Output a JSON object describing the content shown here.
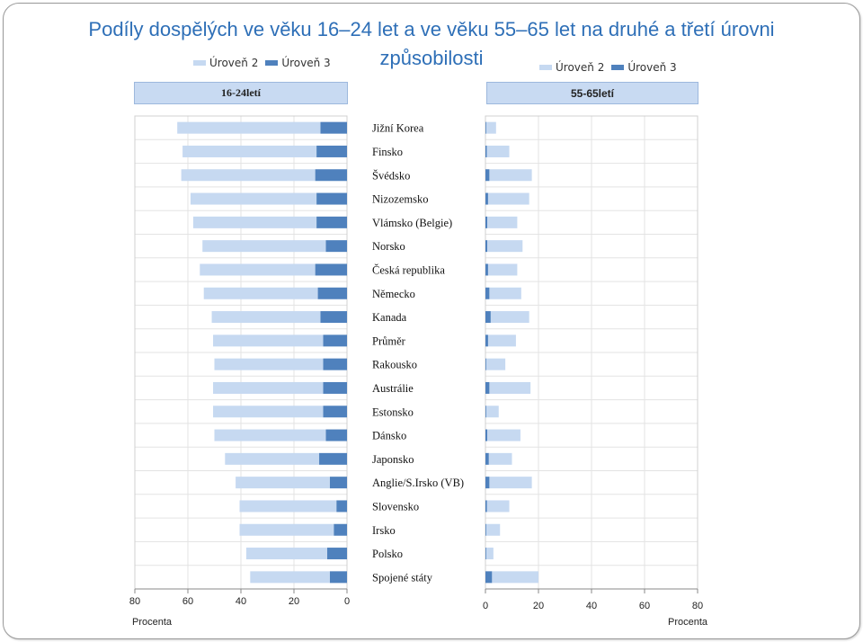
{
  "chart_data": {
    "type": "bar",
    "title_line1": "Podíly dospělých ve věku 16–24 let a ve věku 55–65 let na druhé a třetí úrovni",
    "title_line2": "způsobilosti",
    "legend": [
      "Úroveň 2",
      "Úroveň 3"
    ],
    "colors": {
      "level2": "#c6d9f1",
      "level3": "#4f81bd"
    },
    "categories": [
      "Jižní Korea",
      "Finsko",
      "Švédsko",
      "Nizozemsko",
      "Vlámsko (Belgie)",
      "Norsko",
      "Česká republika",
      "Německo",
      "Kanada",
      "Průměr",
      "Rakousko",
      "Austrálie",
      "Estonsko",
      "Dánsko",
      "Japonsko",
      "Anglie/S.Irsko (VB)",
      "Slovensko",
      "Irsko",
      "Polsko",
      "Spojené státy"
    ],
    "panels": [
      {
        "name": "16-24letí",
        "xlim": [
          80,
          0
        ],
        "ticks": [
          80,
          60,
          40,
          20,
          0
        ],
        "xlabel": "Procenta",
        "series": [
          {
            "name": "Úroveň 2",
            "values": [
              54,
              50.5,
              50.5,
              47.5,
              46.5,
              46.5,
              43.5,
              43,
              41,
              41.5,
              41,
              41.5,
              41.5,
              42,
              35.5,
              35.5,
              36.5,
              35.5,
              30.5,
              30
            ]
          },
          {
            "name": "Úroveň 3",
            "values": [
              10,
              11.5,
              12,
              11.5,
              11.5,
              8,
              12,
              11,
              10,
              9,
              9,
              9,
              9,
              8,
              10.5,
              6.5,
              4,
              5,
              7.5,
              6.5
            ]
          }
        ]
      },
      {
        "name": "55-65letí",
        "xlim": [
          0,
          80
        ],
        "ticks": [
          0,
          20,
          40,
          60,
          80
        ],
        "xlabel": "Procenta",
        "series": [
          {
            "name": "Úroveň 3",
            "values": [
              0.3,
              0.5,
              1.5,
              1,
              0.7,
              0.7,
              1,
              1.5,
              2,
              1,
              0.3,
              1.5,
              0.3,
              0.7,
              1.3,
              1.5,
              0.6,
              0.3,
              0.3,
              2.5
            ]
          },
          {
            "name": "Úroveň 2",
            "values": [
              3.7,
              8.5,
              16,
              15.5,
              11.3,
              13.3,
              11,
              12,
              14.5,
              10.5,
              7.2,
              15.5,
              4.7,
              12.5,
              8.7,
              16,
              8.4,
              5.2,
              2.7,
              17.5
            ]
          }
        ]
      }
    ]
  }
}
